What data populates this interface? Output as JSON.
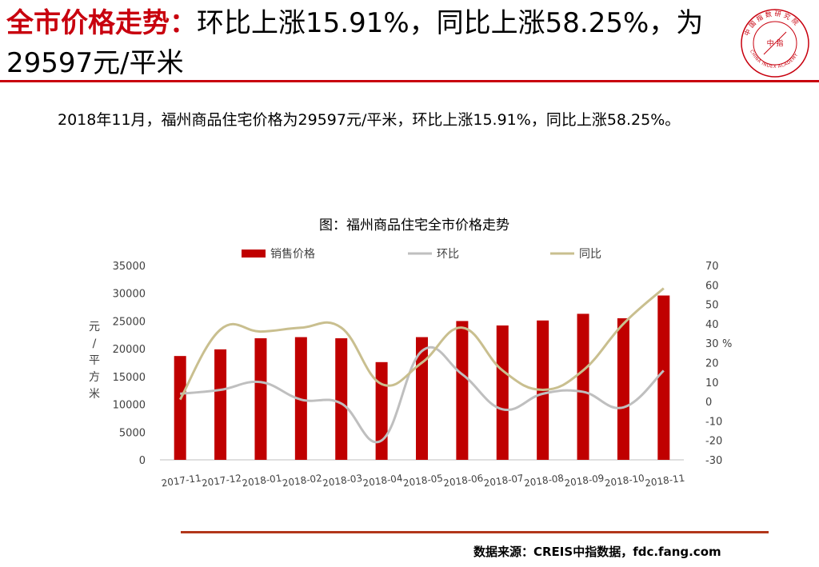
{
  "slide": {
    "title_highlight": "全市价格走势：",
    "title_rest": "环比上涨15.91%，同比上涨58.25%，为29597元/平米",
    "summary": "2018年11月，福州商品住宅价格为29597元/平米，环比上涨15.91%，同比上涨58.25%。",
    "source": "数据来源：CREIS中指数据，fdc.fang.com",
    "logo": {
      "ring_text": "中国指数研究院",
      "english_text": "CHINA INDEX ACADEMY",
      "center_text": "中 指"
    }
  },
  "colors": {
    "accent": "#c8000e",
    "bar": "#c00000",
    "mom": "#bfbfbf",
    "yoy": "#c9bf8f",
    "source_rule": "#b2371a"
  },
  "chart_data": {
    "type": "bar",
    "title": "图：福州商品住宅全市价格走势",
    "categories": [
      "2017-11",
      "2017-12",
      "2018-01",
      "2018-02",
      "2018-03",
      "2018-04",
      "2018-05",
      "2018-06",
      "2018-07",
      "2018-08",
      "2018-09",
      "2018-10",
      "2018-11"
    ],
    "series": [
      {
        "name": "销售价格",
        "type": "bar",
        "axis": "left",
        "values": [
          18700,
          19900,
          21900,
          22100,
          21900,
          17600,
          22100,
          25000,
          24200,
          25100,
          26300,
          25500,
          29597
        ]
      },
      {
        "name": "环比",
        "type": "line",
        "axis": "right",
        "values": [
          4,
          6,
          10,
          1,
          -1,
          -20,
          26,
          14,
          -4,
          4,
          5,
          -3,
          15.91
        ]
      },
      {
        "name": "同比",
        "type": "line",
        "axis": "right",
        "values": [
          1,
          37,
          36,
          38,
          38,
          9,
          20,
          38,
          16,
          6,
          16,
          40,
          58.25
        ]
      }
    ],
    "ylabel": "元/平方米",
    "y2label": "%",
    "ylim": [
      0,
      35000
    ],
    "y2lim": [
      -30,
      70
    ],
    "yticks": [
      "35000",
      "30000",
      "25000",
      "20000",
      "15000",
      "10000",
      "5000",
      "0"
    ],
    "y2ticks": [
      "70",
      "60",
      "50",
      "40",
      "30",
      "20",
      "10",
      "0",
      "-10",
      "-20",
      "-30"
    ],
    "grid": false,
    "legend": "top"
  }
}
